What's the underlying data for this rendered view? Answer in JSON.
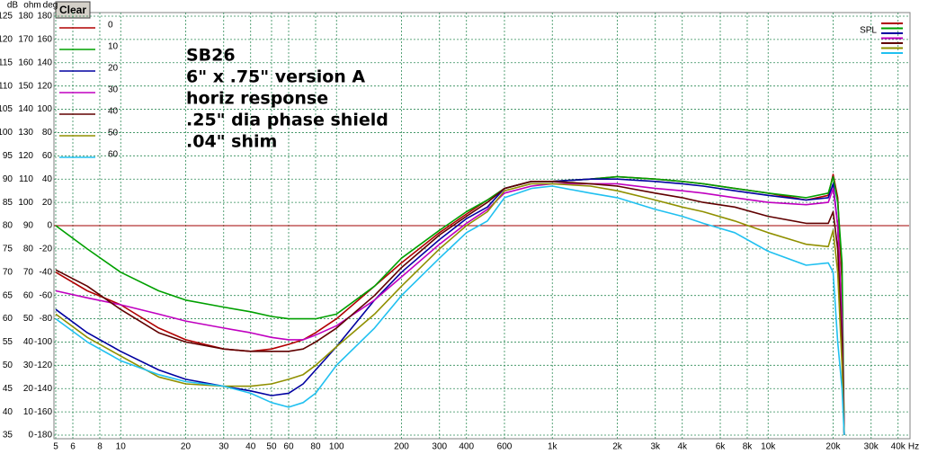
{
  "chart_data": {
    "type": "line",
    "button": "Clear",
    "axis_headers": [
      "dB",
      "ohm",
      "deg"
    ],
    "x_unit": "Hz",
    "spl_label": "SPL",
    "annotations": [
      "SB26",
      "6\" x .75\" version A",
      "horiz response",
      ".25\" dia phase shield",
      ".04\" shim"
    ],
    "xlog": true,
    "grid": true,
    "xlim": [
      5,
      45000
    ],
    "xticks": [
      5,
      6,
      8,
      10,
      20,
      30,
      40,
      50,
      60,
      80,
      100,
      200,
      300,
      400,
      600,
      {
        "value": 1000,
        "label": "1k"
      },
      {
        "value": 2000,
        "label": "2k"
      },
      {
        "value": 3000,
        "label": "3k"
      },
      {
        "value": 4000,
        "label": "4k"
      },
      {
        "value": 6000,
        "label": "6k"
      },
      {
        "value": 8000,
        "label": "8k"
      },
      {
        "value": 10000,
        "label": "10k"
      },
      {
        "value": 20000,
        "label": "20k"
      },
      {
        "value": 30000,
        "label": "30k"
      },
      {
        "value": 40000,
        "label": "40k"
      }
    ],
    "ylim": [
      35,
      125
    ],
    "yticks": [
      35,
      40,
      45,
      50,
      55,
      60,
      65,
      70,
      75,
      80,
      85,
      90,
      95,
      100,
      105,
      110,
      115,
      120,
      125
    ],
    "y2lim": [
      0,
      180
    ],
    "y2ticks": [
      0,
      10,
      20,
      30,
      40,
      50,
      60,
      70,
      80,
      90,
      100,
      110,
      120,
      130,
      140,
      150,
      160,
      170,
      180
    ],
    "y3lim": [
      -180,
      180
    ],
    "y3ticks": [
      -180,
      -160,
      -140,
      -120,
      -100,
      -80,
      -60,
      -40,
      -20,
      0,
      20,
      40,
      60,
      80,
      100,
      120,
      140,
      160,
      180
    ],
    "zero_line": {
      "value": 0,
      "color": "#a00000"
    },
    "x": [
      5,
      7,
      10,
      15,
      20,
      30,
      40,
      50,
      60,
      70,
      80,
      100,
      150,
      200,
      300,
      400,
      500,
      600,
      800,
      1000,
      1500,
      2000,
      3000,
      4000,
      5000,
      7000,
      10000,
      15000,
      19000,
      20000,
      21000,
      22000,
      22500
    ],
    "series": [
      {
        "name": "0",
        "color": "#b00000",
        "values": [
          70,
          66,
          63,
          58,
          55.5,
          53.5,
          53,
          53.5,
          54.5,
          55.5,
          57,
          60,
          67,
          72,
          78.5,
          82.5,
          85.5,
          88,
          89.5,
          89.5,
          90,
          90.5,
          90,
          89.5,
          89,
          88,
          87,
          85.5,
          86.5,
          91,
          86,
          68,
          35
        ]
      },
      {
        "name": "10",
        "color": "#00a000",
        "values": [
          80,
          75,
          70,
          66,
          64,
          62.5,
          61.5,
          60.5,
          60,
          60,
          60,
          61,
          67,
          73,
          79,
          83,
          85.5,
          88,
          89.5,
          89.5,
          90,
          90.5,
          90,
          89.5,
          89,
          88,
          87,
          86,
          87,
          90.5,
          85,
          72,
          35
        ]
      },
      {
        "name": "20",
        "color": "#0000a0",
        "values": [
          62,
          57,
          53,
          49,
          47,
          45.5,
          44.5,
          43.5,
          44,
          46,
          49,
          54,
          64,
          70,
          77,
          81.5,
          84,
          88,
          89.5,
          89.5,
          90,
          90,
          89.5,
          89,
          88.5,
          87.5,
          86.5,
          85.5,
          86,
          89,
          80,
          58,
          35
        ]
      },
      {
        "name": "30",
        "color": "#c000c0",
        "values": [
          66,
          64.5,
          63,
          61,
          59.5,
          58,
          57,
          56,
          55.5,
          55.5,
          56.5,
          58.5,
          64,
          69,
          76,
          80.5,
          83.5,
          87,
          88.5,
          89,
          89,
          89,
          88,
          87.5,
          87,
          86,
          85,
          84.5,
          85,
          88,
          80,
          60,
          35
        ]
      },
      {
        "name": "40",
        "color": "#600000",
        "values": [
          70.5,
          67,
          62,
          57,
          55,
          53.5,
          53,
          53,
          53,
          53.5,
          55,
          58,
          65,
          71,
          78,
          82,
          85,
          88,
          89.5,
          89.5,
          89,
          88.5,
          87,
          86,
          85,
          84,
          82,
          80.5,
          80.5,
          83,
          75,
          55,
          35
        ]
      },
      {
        "name": "50",
        "color": "#909000",
        "values": [
          61,
          56,
          52,
          47.5,
          46,
          45.5,
          45.5,
          46,
          47,
          48,
          50,
          54,
          61,
          67,
          75,
          80,
          83,
          87.5,
          89,
          89,
          88.5,
          87.5,
          85.5,
          84,
          83,
          81,
          78.5,
          76,
          75.5,
          79,
          70,
          50,
          35
        ]
      },
      {
        "name": "60",
        "color": "#20c0f0",
        "values": [
          60,
          55,
          51,
          48,
          46.5,
          45.5,
          44,
          42,
          41,
          42,
          44,
          50,
          58,
          65,
          73,
          78.5,
          81,
          86,
          88,
          88.5,
          87,
          86,
          83.5,
          82,
          80.5,
          78.5,
          74.5,
          71.5,
          72,
          70,
          55,
          45,
          35
        ]
      }
    ]
  }
}
